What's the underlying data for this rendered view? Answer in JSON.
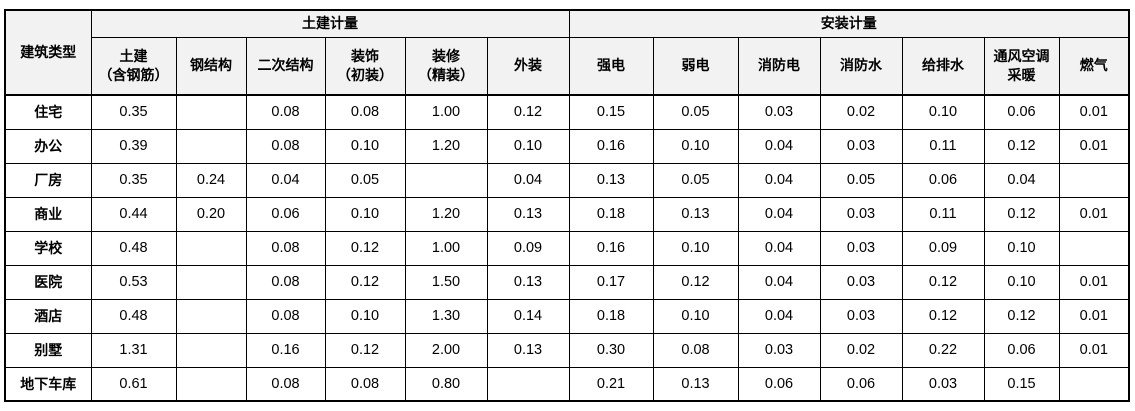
{
  "table": {
    "corner_header": "建筑类型",
    "groups": [
      {
        "label": "土建计量",
        "span": 6
      },
      {
        "label": "安装计量",
        "span": 7
      }
    ],
    "columns": [
      "土建\n（含钢筋）",
      "钢结构",
      "二次结构",
      "装饰\n（初装）",
      "装修\n（精装）",
      "外装",
      "强电",
      "弱电",
      "消防电",
      "消防水",
      "给排水",
      "通风空调\n采暖",
      "燃气"
    ],
    "rows": [
      {
        "label": "住宅",
        "values": [
          "0.35",
          "",
          "0.08",
          "0.08",
          "1.00",
          "0.12",
          "0.15",
          "0.05",
          "0.03",
          "0.02",
          "0.10",
          "0.06",
          "0.01"
        ]
      },
      {
        "label": "办公",
        "values": [
          "0.39",
          "",
          "0.08",
          "0.10",
          "1.20",
          "0.10",
          "0.16",
          "0.10",
          "0.04",
          "0.03",
          "0.11",
          "0.12",
          "0.01"
        ]
      },
      {
        "label": "厂房",
        "values": [
          "0.35",
          "0.24",
          "0.04",
          "0.05",
          "",
          "0.04",
          "0.13",
          "0.05",
          "0.04",
          "0.05",
          "0.06",
          "0.04",
          ""
        ]
      },
      {
        "label": "商业",
        "values": [
          "0.44",
          "0.20",
          "0.06",
          "0.10",
          "1.20",
          "0.13",
          "0.18",
          "0.13",
          "0.04",
          "0.03",
          "0.11",
          "0.12",
          "0.01"
        ]
      },
      {
        "label": "学校",
        "values": [
          "0.48",
          "",
          "0.08",
          "0.12",
          "1.00",
          "0.09",
          "0.16",
          "0.10",
          "0.04",
          "0.03",
          "0.09",
          "0.10",
          ""
        ]
      },
      {
        "label": "医院",
        "values": [
          "0.53",
          "",
          "0.08",
          "0.12",
          "1.50",
          "0.13",
          "0.17",
          "0.12",
          "0.04",
          "0.03",
          "0.12",
          "0.10",
          "0.01"
        ]
      },
      {
        "label": "酒店",
        "values": [
          "0.48",
          "",
          "0.08",
          "0.10",
          "1.30",
          "0.14",
          "0.18",
          "0.10",
          "0.04",
          "0.03",
          "0.12",
          "0.12",
          "0.01"
        ]
      },
      {
        "label": "别墅",
        "values": [
          "1.31",
          "",
          "0.16",
          "0.12",
          "2.00",
          "0.13",
          "0.30",
          "0.08",
          "0.03",
          "0.02",
          "0.22",
          "0.06",
          "0.01"
        ]
      },
      {
        "label": "地下车库",
        "values": [
          "0.61",
          "",
          "0.08",
          "0.08",
          "0.80",
          "",
          "0.21",
          "0.13",
          "0.06",
          "0.06",
          "0.03",
          "0.15",
          ""
        ]
      }
    ]
  }
}
